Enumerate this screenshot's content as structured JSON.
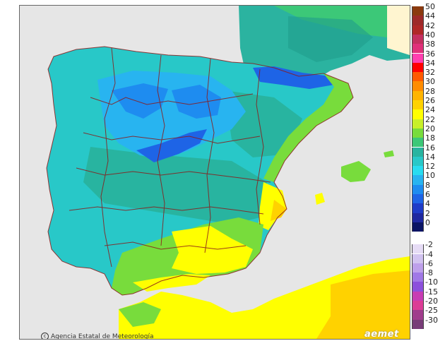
{
  "map": {
    "credit_text": "Agencia Estatal de Meteorología",
    "logo_text": "aemet",
    "sea_color": "#e6e6e6",
    "border_color": "#8b1a1a"
  },
  "legend": {
    "positive": [
      {
        "label": "50",
        "color": "#8b3a0f"
      },
      {
        "label": "44",
        "color": "#9e2a2a"
      },
      {
        "label": "42",
        "color": "#b02828"
      },
      {
        "label": "40",
        "color": "#c43060"
      },
      {
        "label": "38",
        "color": "#e0307a"
      },
      {
        "label": "36",
        "color": "#ff3fb0"
      },
      {
        "label": "34",
        "color": "#ff0000"
      },
      {
        "label": "32",
        "color": "#ff5a00"
      },
      {
        "label": "30",
        "color": "#ff8c00"
      },
      {
        "label": "28",
        "color": "#ffb400"
      },
      {
        "label": "26",
        "color": "#ffd200"
      },
      {
        "label": "24",
        "color": "#ffff00"
      },
      {
        "label": "22",
        "color": "#c8f028"
      },
      {
        "label": "20",
        "color": "#78dc3c"
      },
      {
        "label": "18",
        "color": "#3cc878"
      },
      {
        "label": "16",
        "color": "#28b4a0"
      },
      {
        "label": "14",
        "color": "#28c8c8"
      },
      {
        "label": "12",
        "color": "#28dcf0"
      },
      {
        "label": "10",
        "color": "#28b4f0"
      },
      {
        "label": "8",
        "color": "#1e8cf0"
      },
      {
        "label": "6",
        "color": "#1e64e6"
      },
      {
        "label": "4",
        "color": "#1e3cc8"
      },
      {
        "label": "2",
        "color": "#1e28a0"
      },
      {
        "label": "0",
        "color": "#0a1464"
      }
    ],
    "negative": [
      {
        "label": "-2",
        "color": "#e6dcf5"
      },
      {
        "label": "-4",
        "color": "#d2c3f0"
      },
      {
        "label": "-6",
        "color": "#bea0eb"
      },
      {
        "label": "-8",
        "color": "#a078e6"
      },
      {
        "label": "-10",
        "color": "#8c50dc"
      },
      {
        "label": "-15",
        "color": "#c83cb4"
      },
      {
        "label": "-20",
        "color": "#dc3c96"
      },
      {
        "label": "-25",
        "color": "#a03c8c"
      },
      {
        "label": "-30",
        "color": "#783c78"
      }
    ]
  }
}
